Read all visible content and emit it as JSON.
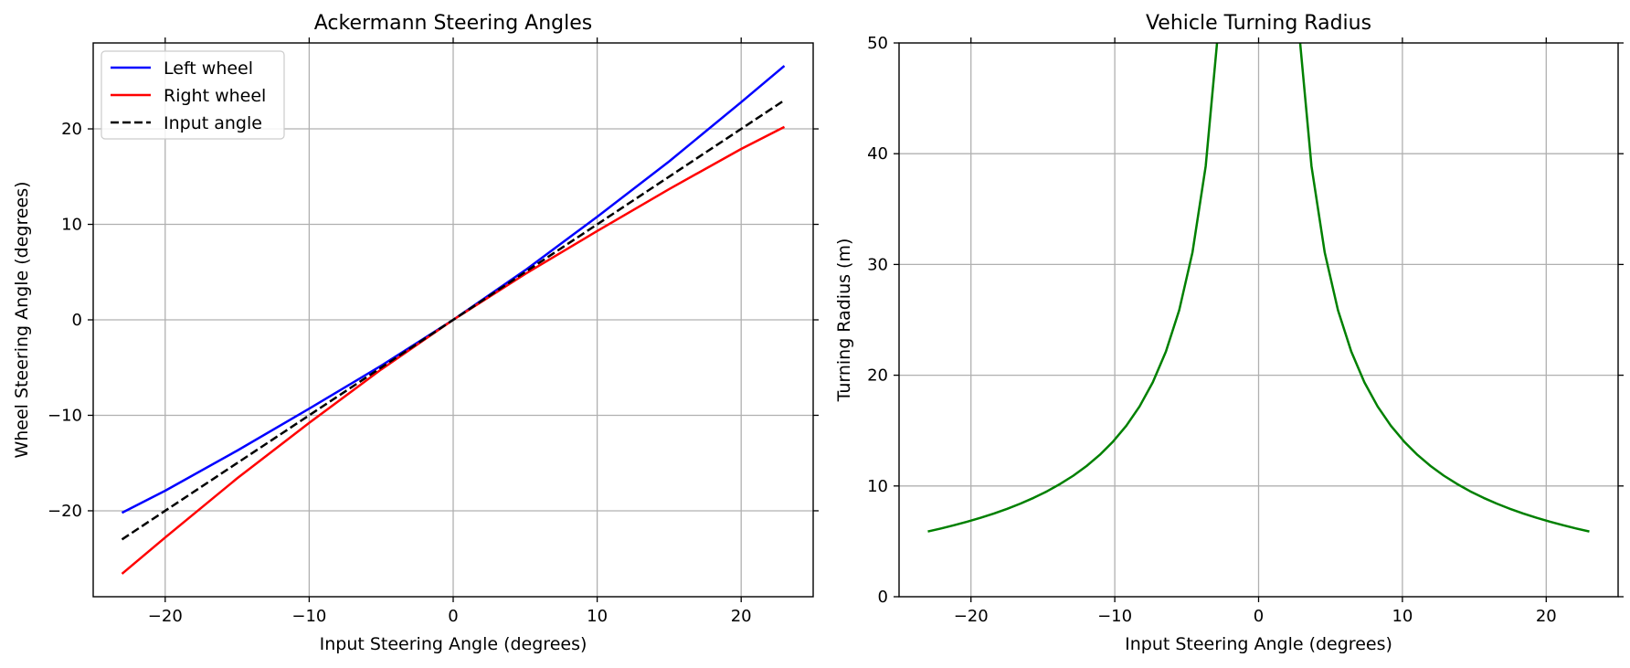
{
  "chart_data": [
    {
      "type": "line",
      "title": "Ackermann Steering Angles",
      "xlabel": "Input Steering Angle (degrees)",
      "ylabel": "Wheel Steering Angle (degrees)",
      "xlim": [
        -25,
        25
      ],
      "ylim": [
        -29,
        29
      ],
      "xticks": [
        -20,
        -10,
        0,
        10,
        20
      ],
      "yticks": [
        -20,
        -10,
        0,
        10,
        20
      ],
      "xtick_labels": [
        "−20",
        "−10",
        "0",
        "10",
        "20"
      ],
      "ytick_labels": [
        "−20",
        "−10",
        "0",
        "10",
        "20"
      ],
      "grid": true,
      "legend_position": "upper-left",
      "series": [
        {
          "name": "Left wheel",
          "color": "#0000ff",
          "style": "solid",
          "x": [
            -23,
            -20,
            -15,
            -10,
            -5,
            0,
            5,
            10,
            15,
            20,
            23
          ],
          "y": [
            -20.2,
            -17.9,
            -13.7,
            -9.3,
            -4.8,
            0,
            5.2,
            10.8,
            16.6,
            22.8,
            26.6
          ]
        },
        {
          "name": "Right wheel",
          "color": "#ff0000",
          "style": "solid",
          "x": [
            -23,
            -20,
            -15,
            -10,
            -5,
            0,
            5,
            10,
            15,
            20,
            23
          ],
          "y": [
            -26.6,
            -22.8,
            -16.6,
            -10.8,
            -5.2,
            0,
            4.8,
            9.3,
            13.7,
            17.9,
            20.2
          ]
        },
        {
          "name": "Input angle",
          "color": "#000000",
          "style": "dashed",
          "x": [
            -23,
            23
          ],
          "y": [
            -23,
            23
          ]
        }
      ]
    },
    {
      "type": "line",
      "title": "Vehicle Turning Radius",
      "xlabel": "Input Steering Angle (degrees)",
      "ylabel": "Turning Radius (m)",
      "xlim": [
        -25,
        25
      ],
      "ylim": [
        0,
        50
      ],
      "xticks": [
        -20,
        -10,
        0,
        10,
        20
      ],
      "yticks": [
        0,
        10,
        20,
        30,
        40,
        50
      ],
      "xtick_labels": [
        "−20",
        "−10",
        "0",
        "10",
        "20"
      ],
      "ytick_labels": [
        "0",
        "10",
        "20",
        "30",
        "40",
        "50"
      ],
      "grid": true,
      "wheelbase_m": 2.5,
      "series": [
        {
          "name": "Turning radius",
          "color": "#008000",
          "style": "solid",
          "x_range": [
            -23,
            23
          ],
          "x_step": 0.92,
          "formula": "R = 2.5 / tan(|x|)"
        }
      ]
    }
  ]
}
